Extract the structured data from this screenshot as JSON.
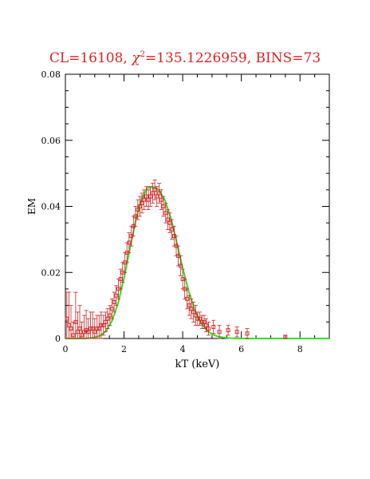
{
  "chart_data": {
    "type": "scatter",
    "title": {
      "prefix": "CL=16108, ",
      "chi_symbol": "χ",
      "chi_power": "2",
      "suffix": "=135.1226959, BINS=73"
    },
    "xlabel": "kT (keV)",
    "ylabel": "EM",
    "xlim": [
      0,
      9
    ],
    "ylim": [
      0,
      0.08
    ],
    "xticks": [
      "0",
      "2",
      "4",
      "6",
      "8"
    ],
    "yticks": [
      "0",
      "0.02",
      "0.04",
      "0.06",
      "0.08"
    ],
    "colors": {
      "data": "#cc2222",
      "model": "#33dd22",
      "axis": "#000000",
      "title": "#dd2222"
    },
    "series": [
      {
        "kind": "points",
        "x": [
          0.05,
          0.12,
          0.19,
          0.27,
          0.35,
          0.42,
          0.49,
          0.56,
          0.64,
          0.71,
          0.78,
          0.86,
          0.93,
          1.0,
          1.08,
          1.15,
          1.22,
          1.3,
          1.37,
          1.44,
          1.52,
          1.59,
          1.66,
          1.73,
          1.81,
          1.88,
          1.95,
          2.03,
          2.1,
          2.17,
          2.25,
          2.32,
          2.39,
          2.47,
          2.54,
          2.61,
          2.68,
          2.76,
          2.83,
          2.9,
          2.98,
          3.05,
          3.12,
          3.2,
          3.27,
          3.34,
          3.42,
          3.49,
          3.56,
          3.63,
          3.71,
          3.78,
          3.85,
          3.93,
          4.0,
          4.07,
          4.15,
          4.22,
          4.29,
          4.37,
          4.44,
          4.51,
          4.58,
          4.66,
          4.73,
          4.8,
          4.88,
          5.05,
          5.25,
          5.55,
          5.85,
          6.2,
          7.5
        ],
        "y": [
          0.006,
          0.004,
          0.003,
          0.001,
          0.005,
          0.002,
          0.003,
          0.001,
          0.002,
          0.0025,
          0.002,
          0.003,
          0.003,
          0.002,
          0.003,
          0.003,
          0.004,
          0.004,
          0.005,
          0.006,
          0.007,
          0.009,
          0.011,
          0.013,
          0.015,
          0.018,
          0.02,
          0.023,
          0.026,
          0.029,
          0.031,
          0.034,
          0.037,
          0.039,
          0.04,
          0.041,
          0.042,
          0.043,
          0.042,
          0.043,
          0.044,
          0.045,
          0.043,
          0.044,
          0.042,
          0.04,
          0.038,
          0.036,
          0.035,
          0.033,
          0.031,
          0.028,
          0.025,
          0.022,
          0.018,
          0.015,
          0.012,
          0.01,
          0.009,
          0.008,
          0.007,
          0.006,
          0.006,
          0.005,
          0.005,
          0.004,
          0.003,
          0.0035,
          0.002,
          0.0025,
          0.002,
          0.0015,
          0.0005
        ],
        "yerr": [
          0.008,
          0.01,
          0.007,
          0.004,
          0.009,
          0.006,
          0.007,
          0.004,
          0.005,
          0.006,
          0.004,
          0.005,
          0.005,
          0.004,
          0.004,
          0.004,
          0.004,
          0.003,
          0.003,
          0.003,
          0.003,
          0.003,
          0.003,
          0.003,
          0.003,
          0.003,
          0.003,
          0.003,
          0.003,
          0.003,
          0.003,
          0.003,
          0.003,
          0.003,
          0.003,
          0.003,
          0.003,
          0.003,
          0.003,
          0.003,
          0.003,
          0.003,
          0.003,
          0.003,
          0.003,
          0.003,
          0.003,
          0.003,
          0.003,
          0.003,
          0.003,
          0.003,
          0.003,
          0.003,
          0.003,
          0.003,
          0.003,
          0.003,
          0.003,
          0.003,
          0.003,
          0.002,
          0.002,
          0.002,
          0.002,
          0.002,
          0.002,
          0.002,
          0.002,
          0.0015,
          0.0015,
          0.0015,
          0.0005
        ]
      },
      {
        "kind": "model_curve",
        "x": [
          0.0,
          0.2,
          0.4,
          0.6,
          0.8,
          1.0,
          1.2,
          1.4,
          1.6,
          1.8,
          2.0,
          2.2,
          2.4,
          2.6,
          2.8,
          3.0,
          3.1,
          3.2,
          3.4,
          3.6,
          3.8,
          4.0,
          4.2,
          4.4,
          4.6,
          4.8,
          5.0,
          5.2,
          5.4,
          5.6,
          6.0,
          7.0,
          8.0,
          9.0
        ],
        "y": [
          0.0,
          0.0,
          0.0,
          0.0,
          0.0001,
          0.0003,
          0.0009,
          0.0024,
          0.0055,
          0.0108,
          0.0183,
          0.0272,
          0.0358,
          0.0423,
          0.0456,
          0.0458,
          0.0455,
          0.0448,
          0.0418,
          0.0363,
          0.029,
          0.0213,
          0.0144,
          0.0089,
          0.0051,
          0.0027,
          0.0013,
          0.0006,
          0.0003,
          0.0001,
          0.0,
          0.0,
          0.0,
          0.0
        ]
      }
    ]
  }
}
